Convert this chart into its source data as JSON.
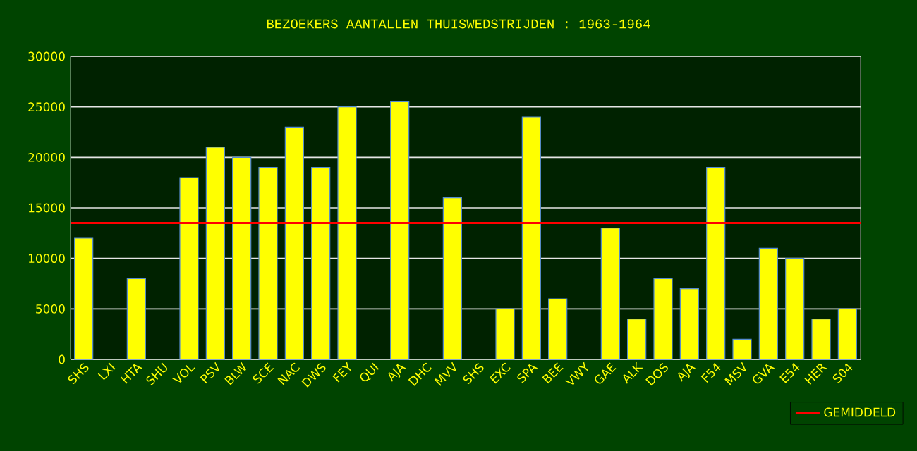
{
  "chart_data": {
    "type": "bar",
    "title": "BEZOEKERS AANTALLEN THUISWEDSTRIJDEN : 1963-1964",
    "categories": [
      "SHS",
      "LXI",
      "HTA",
      "SHU",
      "VOL",
      "PSV",
      "BLW",
      "SCE",
      "NAC",
      "DWS",
      "FEY",
      "QUI",
      "AJA",
      "DHC",
      "MVV",
      "SHS",
      "EXC",
      "SPA",
      "BEE",
      "VWY",
      "GAE",
      "ALK",
      "DOS",
      "AJA",
      "F54",
      "MSV",
      "GVA",
      "E54",
      "HER",
      "S04"
    ],
    "values": [
      12000,
      null,
      8000,
      null,
      18000,
      21000,
      20000,
      19000,
      23000,
      19000,
      25000,
      null,
      25500,
      null,
      16000,
      null,
      5000,
      24000,
      6000,
      null,
      13000,
      4000,
      8000,
      7000,
      19000,
      2000,
      11000,
      10000,
      4000,
      5000
    ],
    "color": "#ffff00",
    "ylim": [
      0,
      30000
    ],
    "yticks": [
      0,
      5000,
      10000,
      15000,
      20000,
      25000,
      30000
    ],
    "grid": "y",
    "legend": "bottom right",
    "ref_lines": [
      {
        "axis": "y",
        "value": 13500,
        "label": "GEMIDDELD",
        "color": "#ff0000"
      }
    ]
  }
}
